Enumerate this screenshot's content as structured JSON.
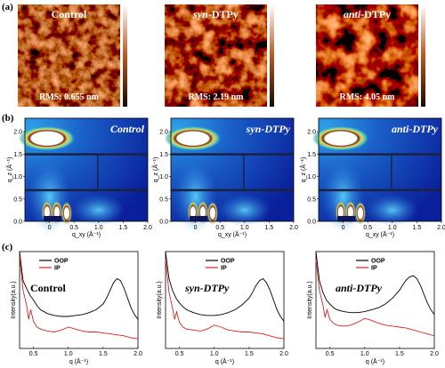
{
  "panel_labels": [
    "(a)",
    "(b)",
    "(c)"
  ],
  "afm": [
    {
      "title": "Control",
      "rms": "RMS: 0.655 nm"
    },
    {
      "title": "syn-DTPy",
      "title_prefix": "syn",
      "title_suffix": "-DTPy",
      "rms": "RMS: 2.19 nm"
    },
    {
      "title": "anti-DTPy",
      "title_prefix": "anti",
      "title_suffix": "-DTPy",
      "rms": "RMS: 4.05 nm"
    }
  ],
  "giwaxs": {
    "titles": [
      "Control",
      "syn-DTPy",
      "anti-DTPy"
    ],
    "qz_label": "q_z (Å⁻¹)",
    "qxy_label": "q_xy (Å⁻¹)",
    "y_ticks": [
      "0.0",
      "0.5",
      "1.0",
      "1.5",
      "2.0"
    ],
    "x_ticks": [
      "0",
      "0.5",
      "1.0",
      "1.5",
      "2.0"
    ],
    "x_ticks_first": [
      "0",
      "0.5",
      "1.0",
      "1.5",
      "2.0"
    ]
  },
  "chart_data": [
    {
      "type": "line",
      "title": "Control",
      "xlabel": "q (Å⁻¹)",
      "ylabel": "Intensity(a.u.)",
      "xlim": [
        0.3,
        2.0
      ],
      "x_ticks": [
        "0.5",
        "1.0",
        "1.5",
        "2.0"
      ],
      "series": [
        {
          "name": "OOP",
          "color": "#000000",
          "x": [
            0.3,
            0.35,
            0.4,
            0.45,
            0.5,
            0.55,
            0.6,
            0.7,
            0.8,
            0.9,
            1.0,
            1.1,
            1.2,
            1.3,
            1.4,
            1.5,
            1.55,
            1.6,
            1.65,
            1.7,
            1.75,
            1.8,
            1.85,
            1.9,
            1.95,
            2.0
          ],
          "y": [
            1.0,
            0.7,
            0.62,
            0.55,
            0.5,
            0.44,
            0.4,
            0.36,
            0.34,
            0.33,
            0.33,
            0.34,
            0.35,
            0.37,
            0.4,
            0.46,
            0.52,
            0.6,
            0.68,
            0.72,
            0.7,
            0.62,
            0.52,
            0.42,
            0.35,
            0.3
          ]
        },
        {
          "name": "IP",
          "color": "#e02020",
          "x": [
            0.3,
            0.35,
            0.4,
            0.43,
            0.46,
            0.5,
            0.55,
            0.6,
            0.7,
            0.8,
            0.9,
            1.0,
            1.1,
            1.2,
            1.3,
            1.4,
            1.5,
            1.6,
            1.7,
            1.8,
            1.9,
            2.0
          ],
          "y": [
            0.95,
            0.6,
            0.45,
            0.3,
            0.4,
            0.28,
            0.22,
            0.2,
            0.18,
            0.17,
            0.19,
            0.22,
            0.2,
            0.18,
            0.17,
            0.17,
            0.16,
            0.15,
            0.14,
            0.13,
            0.11,
            0.1
          ]
        }
      ]
    },
    {
      "type": "line",
      "title": "syn-DTPy",
      "xlabel": "q (Å⁻¹)",
      "ylabel": "Intensity(a.u.)",
      "xlim": [
        0.3,
        2.0
      ],
      "x_ticks": [
        "0.5",
        "1.0",
        "1.5",
        "2.0"
      ],
      "series": [
        {
          "name": "OOP",
          "color": "#000000",
          "x": [
            0.3,
            0.35,
            0.4,
            0.45,
            0.5,
            0.55,
            0.6,
            0.7,
            0.8,
            0.9,
            1.0,
            1.1,
            1.2,
            1.3,
            1.4,
            1.5,
            1.55,
            1.6,
            1.65,
            1.7,
            1.75,
            1.8,
            1.85,
            1.9,
            1.95,
            2.0
          ],
          "y": [
            1.0,
            0.72,
            0.6,
            0.52,
            0.47,
            0.43,
            0.4,
            0.37,
            0.35,
            0.34,
            0.34,
            0.35,
            0.37,
            0.4,
            0.45,
            0.52,
            0.58,
            0.65,
            0.7,
            0.72,
            0.68,
            0.6,
            0.5,
            0.4,
            0.33,
            0.28
          ]
        },
        {
          "name": "IP",
          "color": "#e02020",
          "x": [
            0.3,
            0.35,
            0.4,
            0.43,
            0.46,
            0.5,
            0.55,
            0.6,
            0.7,
            0.8,
            0.9,
            1.0,
            1.1,
            1.2,
            1.3,
            1.4,
            1.5,
            1.6,
            1.7,
            1.8,
            1.9,
            2.0
          ],
          "y": [
            0.92,
            0.58,
            0.42,
            0.3,
            0.38,
            0.27,
            0.22,
            0.2,
            0.19,
            0.18,
            0.2,
            0.24,
            0.22,
            0.19,
            0.18,
            0.17,
            0.17,
            0.16,
            0.15,
            0.13,
            0.11,
            0.1
          ]
        }
      ]
    },
    {
      "type": "line",
      "title": "anti-DTPy",
      "xlabel": "q (Å⁻¹)",
      "ylabel": "Intensity(a.u.)",
      "xlim": [
        0.3,
        2.0
      ],
      "x_ticks": [
        "0.5",
        "1.0",
        "1.5",
        "2.0"
      ],
      "series": [
        {
          "name": "OOP",
          "color": "#000000",
          "x": [
            0.3,
            0.35,
            0.4,
            0.45,
            0.5,
            0.55,
            0.6,
            0.7,
            0.8,
            0.9,
            1.0,
            1.1,
            1.2,
            1.3,
            1.4,
            1.5,
            1.55,
            1.6,
            1.65,
            1.7,
            1.75,
            1.8,
            1.85,
            1.9,
            1.95,
            2.0
          ],
          "y": [
            1.0,
            0.7,
            0.58,
            0.5,
            0.46,
            0.42,
            0.4,
            0.38,
            0.37,
            0.37,
            0.38,
            0.4,
            0.42,
            0.46,
            0.52,
            0.6,
            0.66,
            0.71,
            0.74,
            0.75,
            0.72,
            0.65,
            0.56,
            0.47,
            0.4,
            0.35
          ]
        },
        {
          "name": "IP",
          "color": "#e02020",
          "x": [
            0.3,
            0.35,
            0.4,
            0.43,
            0.46,
            0.5,
            0.55,
            0.6,
            0.7,
            0.8,
            0.9,
            1.0,
            1.1,
            1.2,
            1.3,
            1.4,
            1.5,
            1.6,
            1.7,
            1.8,
            1.9,
            2.0
          ],
          "y": [
            0.92,
            0.6,
            0.45,
            0.32,
            0.4,
            0.3,
            0.26,
            0.24,
            0.23,
            0.24,
            0.27,
            0.31,
            0.29,
            0.26,
            0.24,
            0.23,
            0.22,
            0.21,
            0.19,
            0.17,
            0.15,
            0.13
          ]
        }
      ]
    }
  ]
}
